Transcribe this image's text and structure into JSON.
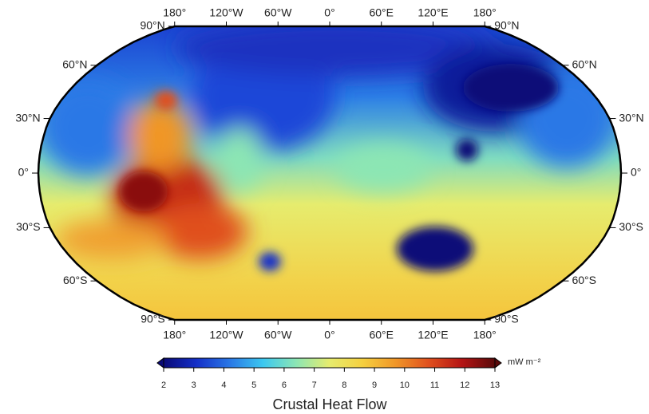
{
  "map": {
    "title": "Crustal Heat Flow",
    "longitude_labels": [
      "180°",
      "120°W",
      "60°W",
      "0°",
      "60°E",
      "120°E",
      "180°"
    ],
    "latitude_labels": [
      "90°N",
      "60°N",
      "30°N",
      "0°",
      "30°S",
      "60°S",
      "90°S"
    ],
    "colorbar": {
      "unit": "mW m⁻²",
      "range": [
        2,
        13
      ],
      "ticks": [
        2,
        3,
        4,
        5,
        6,
        7,
        8,
        9,
        10,
        11,
        12,
        13
      ],
      "colormap": [
        "#0a0a78",
        "#1530c8",
        "#2a78e6",
        "#3cc8f0",
        "#8ce6b4",
        "#e6ec6e",
        "#f5d040",
        "#f09628",
        "#e0501e",
        "#b41414",
        "#5a0a0a"
      ]
    }
  }
}
